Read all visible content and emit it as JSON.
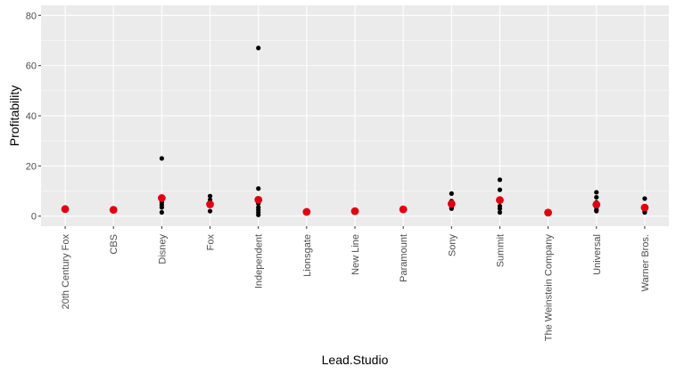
{
  "chart_data": {
    "type": "scatter",
    "xlabel": "Lead.Studio",
    "ylabel": "Profitability",
    "ylim": [
      -4,
      84
    ],
    "y_ticks": [
      0,
      20,
      40,
      60,
      80
    ],
    "grid": true,
    "categories": [
      "20th Century Fox",
      "CBS",
      "Disney",
      "Fox",
      "Independent",
      "Lionsgate",
      "New Line",
      "Paramount",
      "Sony",
      "Summit",
      "The Weinstein Company",
      "Universal",
      "Warner Bros."
    ],
    "series": [
      {
        "values": [
          [
            2.5,
            3.0
          ],
          [
            2.5
          ],
          [
            23.0,
            7.5,
            5.5,
            4.5,
            3.5,
            1.5
          ],
          [
            8.0,
            6.5,
            5.0,
            4.5,
            2.0
          ],
          [
            67.0,
            11.0,
            7.0,
            6.0,
            5.0,
            3.5,
            2.5,
            1.5,
            0.5
          ],
          [
            2.0,
            1.5
          ],
          [
            2.0
          ],
          [
            3.0,
            2.5
          ],
          [
            9.0,
            6.0,
            5.0,
            4.5,
            3.5,
            3.0
          ],
          [
            14.5,
            10.5,
            6.5,
            4.0,
            3.0,
            1.5
          ],
          [
            1.5
          ],
          [
            9.5,
            7.5,
            5.5,
            4.5,
            3.5,
            2.5,
            2.0
          ],
          [
            7.0,
            4.0,
            3.0,
            2.5,
            2.0,
            1.5
          ]
        ],
        "color": "#000000"
      },
      {
        "values": [
          2.8,
          2.5,
          7.2,
          4.7,
          6.5,
          1.7,
          2.0,
          2.7,
          4.9,
          6.4,
          1.4,
          4.6,
          3.4
        ],
        "color": "#e0000f"
      }
    ],
    "panel_background": "#ebebeb",
    "grid_color": "#ffffff"
  }
}
